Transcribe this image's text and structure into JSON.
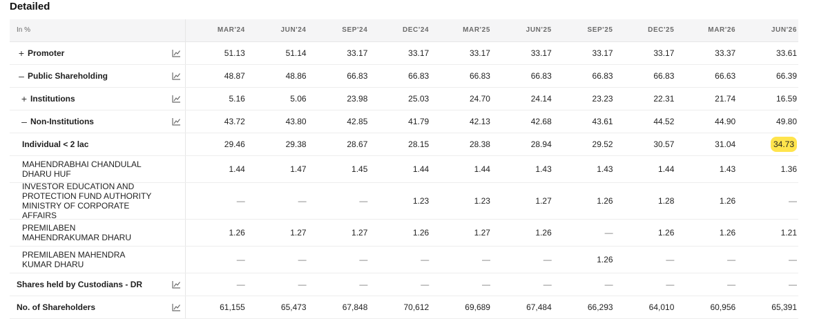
{
  "title": "Detailed",
  "header": {
    "label": "In %",
    "periods": [
      "MAR'24",
      "JUN'24",
      "SEP'24",
      "DEC'24",
      "MAR'25",
      "JUN'25",
      "SEP'25",
      "DEC'25",
      "MAR'26",
      "JUN'26"
    ]
  },
  "rows": [
    {
      "label": "Promoter",
      "toggle": "+",
      "level": 0,
      "bold": true,
      "chart": true,
      "height": 32,
      "values": [
        "51.13",
        "51.14",
        "33.17",
        "33.17",
        "33.17",
        "33.17",
        "33.17",
        "33.17",
        "33.37",
        "33.61"
      ]
    },
    {
      "label": "Public Shareholding",
      "toggle": "—",
      "level": 0,
      "bold": true,
      "chart": true,
      "height": 32,
      "values": [
        "48.87",
        "48.86",
        "66.83",
        "66.83",
        "66.83",
        "66.83",
        "66.83",
        "66.83",
        "66.63",
        "66.39"
      ]
    },
    {
      "label": "Institutions",
      "toggle": "+",
      "level": 1,
      "bold": true,
      "chart": true,
      "height": 32,
      "values": [
        "5.16",
        "5.06",
        "23.98",
        "25.03",
        "24.70",
        "24.14",
        "23.23",
        "22.31",
        "21.74",
        "16.59"
      ]
    },
    {
      "label": "Non-Institutions",
      "toggle": "—",
      "level": 1,
      "bold": true,
      "chart": true,
      "height": 32,
      "values": [
        "43.72",
        "43.80",
        "42.85",
        "41.79",
        "42.13",
        "42.68",
        "43.61",
        "44.52",
        "44.90",
        "49.80"
      ]
    },
    {
      "label": "Individual < 2 lac",
      "toggle": "",
      "level": 2,
      "bold": true,
      "chart": false,
      "height": 32,
      "values": [
        "29.46",
        "29.38",
        "28.67",
        "28.15",
        "28.38",
        "28.94",
        "29.52",
        "30.57",
        "31.04",
        "34.73"
      ],
      "highlight_index": 9
    },
    {
      "label": "MAHENDRABHAI CHANDULAL DHARU HUF",
      "toggle": "",
      "level": 2,
      "bold": false,
      "chart": false,
      "height": 38,
      "values": [
        "1.44",
        "1.47",
        "1.45",
        "1.44",
        "1.44",
        "1.43",
        "1.43",
        "1.44",
        "1.43",
        "1.36"
      ]
    },
    {
      "label": "INVESTOR EDUCATION AND PROTECTION FUND AUTHORITY MINISTRY OF CORPORATE AFFAIRS",
      "toggle": "",
      "level": 2,
      "bold": false,
      "chart": false,
      "height": 52,
      "values": [
        "—",
        "—",
        "—",
        "1.23",
        "1.23",
        "1.27",
        "1.26",
        "1.28",
        "1.26",
        "—"
      ]
    },
    {
      "label": "PREMILABEN MAHENDRAKUMAR DHARU",
      "toggle": "",
      "level": 2,
      "bold": false,
      "chart": false,
      "height": 38,
      "values": [
        "1.26",
        "1.27",
        "1.27",
        "1.26",
        "1.27",
        "1.26",
        "—",
        "1.26",
        "1.26",
        "1.21"
      ]
    },
    {
      "label": "PREMILABEN MAHENDRA KUMAR DHARU",
      "toggle": "",
      "level": 2,
      "bold": false,
      "chart": false,
      "height": 38,
      "values": [
        "—",
        "—",
        "—",
        "—",
        "—",
        "—",
        "1.26",
        "—",
        "—",
        "—"
      ]
    },
    {
      "label": "Shares held by Custodians - DR",
      "toggle": "",
      "level": 0,
      "bold": true,
      "chart": true,
      "height": 32,
      "values": [
        "—",
        "—",
        "—",
        "—",
        "—",
        "—",
        "—",
        "—",
        "—",
        "—"
      ]
    },
    {
      "label": "No. of Shareholders",
      "toggle": "",
      "level": 0,
      "bold": true,
      "chart": true,
      "height": 32,
      "values": [
        "61,155",
        "65,473",
        "67,848",
        "70,612",
        "69,689",
        "67,484",
        "66,293",
        "64,010",
        "60,956",
        "65,391"
      ]
    }
  ],
  "colors": {
    "highlight": "#ffe44d",
    "header_bg": "#f5f5f6",
    "border": "#ededed"
  },
  "icons": {
    "row_chart": "line-chart-icon"
  }
}
